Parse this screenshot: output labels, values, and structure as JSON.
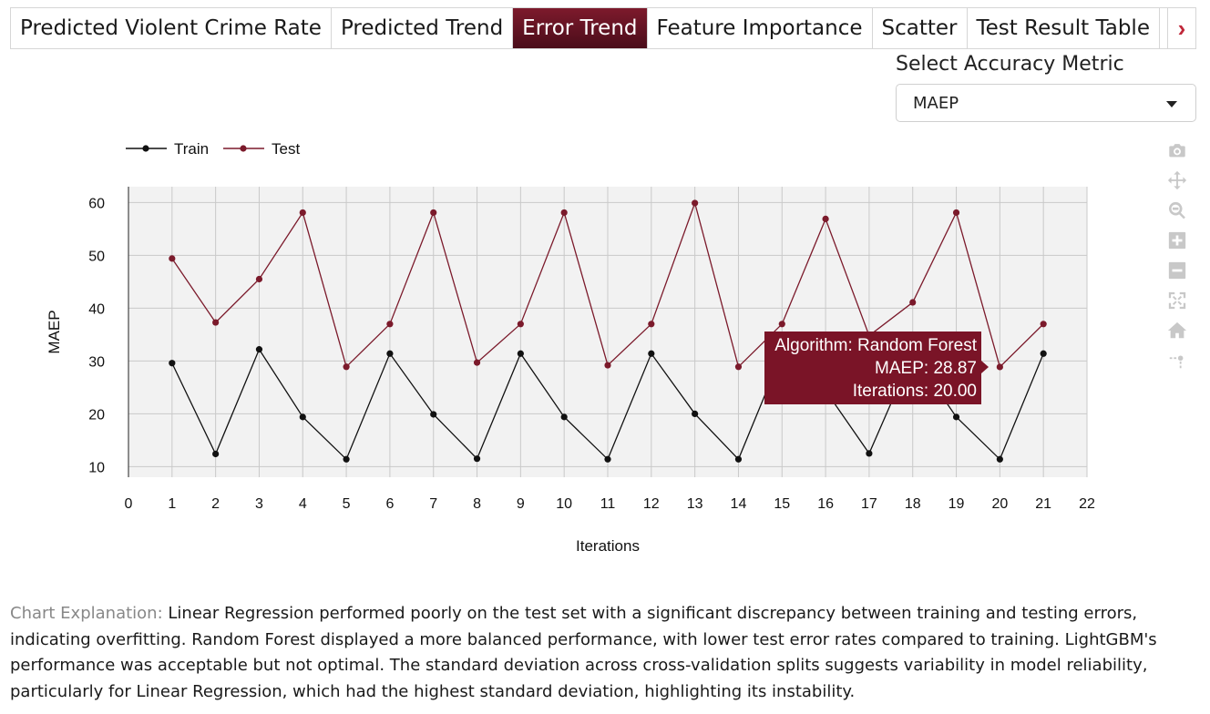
{
  "tabs": [
    {
      "label": "Predicted Violent Crime Rate",
      "active": false
    },
    {
      "label": "Predicted Trend",
      "active": false
    },
    {
      "label": "Error Trend",
      "active": true
    },
    {
      "label": "Feature Importance",
      "active": false
    },
    {
      "label": "Scatter",
      "active": false
    },
    {
      "label": "Test Result Table",
      "active": false
    }
  ],
  "tab_next_icon": "chevron-right-icon",
  "metric": {
    "label": "Select Accuracy Metric",
    "selected": "MAEP"
  },
  "modebar_icons": [
    "camera-icon",
    "pan-icon",
    "zoom-icon",
    "zoom-in-icon",
    "zoom-out-icon",
    "autoscale-icon",
    "reset-axes-icon",
    "spike-lines-icon"
  ],
  "colors": {
    "train": "#111111",
    "test": "#7b1a2b",
    "accent": "#7a1427",
    "plot_bg": "#f2f2f2"
  },
  "chart_data": {
    "type": "line",
    "xlabel": "Iterations",
    "ylabel": "MAEP",
    "xlim": [
      0,
      22
    ],
    "ylim": [
      8,
      63
    ],
    "xticks": [
      0,
      1,
      2,
      3,
      4,
      5,
      6,
      7,
      8,
      9,
      10,
      11,
      12,
      13,
      14,
      15,
      16,
      17,
      18,
      19,
      20,
      21,
      22
    ],
    "yticks": [
      10,
      20,
      30,
      40,
      50,
      60
    ],
    "grid": true,
    "legend": "top-left",
    "series": [
      {
        "name": "Train",
        "x": [
          1,
          2,
          3,
          4,
          5,
          6,
          7,
          8,
          9,
          10,
          11,
          12,
          13,
          14,
          15,
          16,
          17,
          18,
          19,
          20,
          21
        ],
        "y": [
          29.6,
          12.4,
          32.2,
          19.4,
          11.4,
          31.4,
          19.9,
          11.5,
          31.4,
          19.4,
          11.4,
          31.4,
          20.0,
          11.4,
          31.4,
          24.4,
          12.5,
          31.4,
          19.4,
          11.4,
          31.4
        ]
      },
      {
        "name": "Test",
        "x": [
          1,
          2,
          3,
          4,
          5,
          6,
          7,
          8,
          9,
          10,
          11,
          12,
          13,
          14,
          15,
          16,
          17,
          18,
          19,
          20,
          21
        ],
        "y": [
          49.4,
          37.3,
          45.5,
          58.1,
          28.9,
          37.0,
          58.1,
          29.7,
          37.0,
          58.1,
          29.2,
          37.0,
          59.9,
          28.9,
          37.0,
          56.9,
          34.8,
          41.1,
          58.1,
          28.87,
          37.0
        ]
      }
    ],
    "tooltip": {
      "lines": [
        "Algorithm: Random Forest",
        "MAEP: 28.87",
        "Iterations: 20.00"
      ]
    }
  },
  "explanation": {
    "lead": "Chart Explanation:",
    "text": " Linear Regression performed poorly on the test set with a significant discrepancy between training and testing errors, indicating overfitting. Random Forest displayed a more balanced performance, with lower test error rates compared to training. LightGBM's performance was acceptable but not optimal. The standard deviation across cross-validation splits suggests variability in model reliability, particularly for Linear Regression, which had the highest standard deviation, highlighting its instability."
  }
}
